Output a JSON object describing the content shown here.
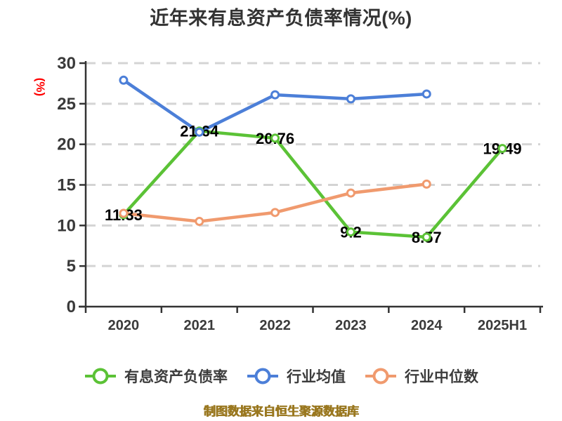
{
  "title": "近年来有息资产负债率情况(%)",
  "y_axis_unit": "(%)",
  "footer": "制图数据来自恒生聚源数据库",
  "colors": {
    "green": "#5bc236",
    "blue": "#4c7fd8",
    "orange": "#f09a6e",
    "grid": "#d4d4d4",
    "axis": "#333333",
    "tick_text": "#3a3a3a",
    "point_label_text": "#000000",
    "title_text": "#333333",
    "legend_text": "#3c3c3c",
    "footer_text": "#9a7820",
    "ylabel_text": "#ff0000",
    "marker_fill": "#ffffff"
  },
  "chart_data": {
    "type": "line",
    "title": "近年来有息资产负债率情况(%)",
    "xlabel": "",
    "ylabel": "(%)",
    "ylim": [
      0,
      30
    ],
    "yticks": [
      0,
      5,
      10,
      15,
      20,
      25,
      30
    ],
    "grid": "horizontal-dashed",
    "legend_position": "bottom",
    "categories": [
      "2020",
      "2021",
      "2022",
      "2023",
      "2024",
      "2025H1"
    ],
    "series": [
      {
        "name": "有息资产负债率",
        "color": "#5bc236",
        "values": [
          11.33,
          21.64,
          20.76,
          9.2,
          8.57,
          19.49
        ],
        "point_labels": [
          "11.33",
          "21.64",
          "20.76",
          "9.2",
          "8.57",
          "19.49"
        ]
      },
      {
        "name": "行业均值",
        "color": "#4c7fd8",
        "values": [
          27.9,
          21.5,
          26.1,
          25.6,
          26.2,
          null
        ]
      },
      {
        "name": "行业中位数",
        "color": "#f09a6e",
        "values": [
          11.5,
          10.5,
          11.6,
          14.0,
          15.1,
          null
        ]
      }
    ]
  }
}
